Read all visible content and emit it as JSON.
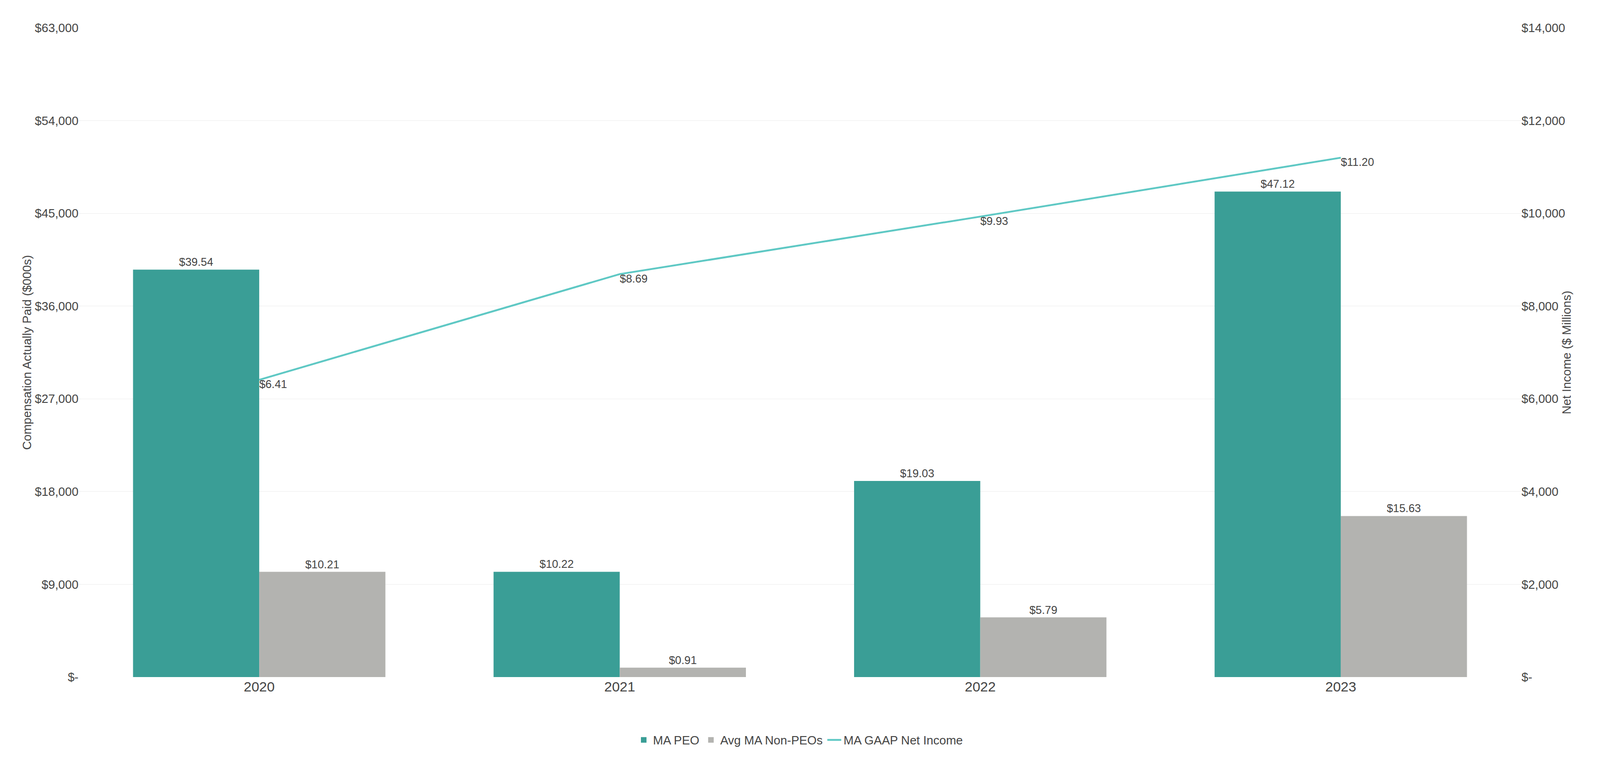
{
  "chart_data": {
    "type": "bar",
    "categories": [
      "2020",
      "2021",
      "2022",
      "2023"
    ],
    "series": [
      {
        "name": "MA PEO",
        "type": "bar",
        "color": "#3a9e96",
        "values": [
          39540,
          10220,
          19030,
          47120
        ],
        "value_labels": [
          "$39.54",
          "$10.22",
          "$19.03",
          "$47.12"
        ]
      },
      {
        "name": "Avg MA Non-PEOs",
        "type": "bar",
        "color": "#b3b3b0",
        "values": [
          10210,
          910,
          5790,
          15630
        ],
        "value_labels": [
          "$10.21",
          "$0.91",
          "$5.79",
          "$15.63"
        ]
      },
      {
        "name": "MA GAAP Net Income",
        "type": "line",
        "axis": "y2",
        "color": "#5ec8c4",
        "values": [
          6410,
          8690,
          9930,
          11200
        ],
        "value_labels": [
          "$6.41",
          "$8.69",
          "$9.93",
          "$11.20"
        ]
      }
    ],
    "ylabel": "Compensation Actually Paid ($000s)",
    "y2label": "Net Income ($ Millions)",
    "ylim": [
      0,
      63000
    ],
    "yticks": [
      {
        "value": 0,
        "label": "$-"
      },
      {
        "value": 9000,
        "label": "$9,000"
      },
      {
        "value": 18000,
        "label": "$18,000"
      },
      {
        "value": 27000,
        "label": "$27,000"
      },
      {
        "value": 36000,
        "label": "$36,000"
      },
      {
        "value": 45000,
        "label": "$45,000"
      },
      {
        "value": 54000,
        "label": "$54,000"
      },
      {
        "value": 63000,
        "label": "$63,000"
      }
    ],
    "y2lim": [
      0,
      14000
    ],
    "y2ticks": [
      {
        "value": 0,
        "label": "$-"
      },
      {
        "value": 2000,
        "label": "$2,000"
      },
      {
        "value": 4000,
        "label": "$4,000"
      },
      {
        "value": 6000,
        "label": "$6,000"
      },
      {
        "value": 8000,
        "label": "$8,000"
      },
      {
        "value": 10000,
        "label": "$10,000"
      },
      {
        "value": 12000,
        "label": "$12,000"
      },
      {
        "value": 14000,
        "label": "$14,000"
      }
    ],
    "grid": true,
    "legend": "bottom",
    "data_labels": true
  }
}
